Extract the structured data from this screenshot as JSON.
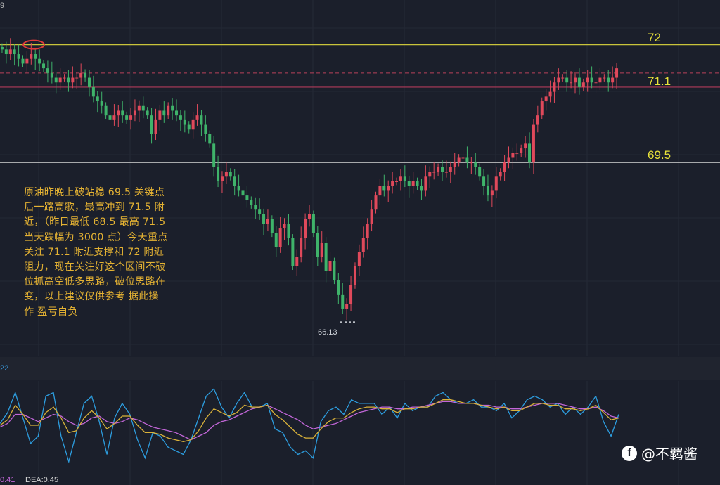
{
  "chart_data": [
    {
      "type": "candlestick",
      "ylim": [
        65.4,
        72.8
      ],
      "levels": [
        {
          "label": "72",
          "value": 72.0,
          "color": "#c9c33b"
        },
        {
          "label": "71.1",
          "value": 71.1,
          "color": "#b03a5a"
        },
        {
          "label": "69.5",
          "value": 69.5,
          "color": "#d8d8d8"
        }
      ],
      "current_price_line": 71.4,
      "low_marker": {
        "label": "66.13",
        "value": 66.13
      },
      "annotation": "原油昨晚上破站稳 69.5 关键点后一路高歌，最高冲到 71.5 附近，（昨日最低 68.5 最高 71.5 当天跌幅为 3000 点）今天重点关注 71.1 附近支撑和 72 附近阻力，现在关注好这个区间不破位抓高空低多思路，破位思路在变，以上建议仅供参考 据此操作 盈亏自负",
      "closes": [
        71.9,
        71.8,
        71.9,
        71.8,
        71.7,
        71.6,
        71.7,
        71.8,
        71.7,
        71.6,
        71.5,
        71.4,
        71.3,
        71.2,
        71.3,
        71.3,
        71.2,
        71.3,
        71.3,
        71.4,
        71.3,
        71.1,
        70.9,
        70.8,
        70.7,
        70.5,
        70.4,
        70.5,
        70.6,
        70.5,
        70.4,
        70.5,
        70.6,
        70.7,
        70.6,
        70.5,
        70.1,
        70.4,
        70.6,
        70.5,
        70.7,
        70.6,
        70.5,
        70.4,
        70.3,
        70.2,
        70.4,
        70.5,
        70.3,
        70.1,
        69.9,
        69.4,
        69.1,
        69.2,
        69.3,
        69.2,
        69.0,
        68.9,
        68.8,
        68.7,
        68.6,
        68.5,
        68.4,
        68.2,
        68.3,
        68.0,
        67.7,
        68.1,
        68.2,
        67.9,
        67.3,
        67.5,
        67.9,
        68.3,
        68.4,
        68.0,
        67.5,
        67.8,
        67.2,
        67.4,
        67.0,
        66.7,
        66.4,
        66.5,
        66.9,
        67.3,
        67.6,
        67.9,
        68.2,
        68.5,
        68.8,
        69.0,
        68.9,
        69.0,
        69.1,
        69.1,
        69.2,
        69.1,
        69.0,
        69.1,
        69.0,
        68.9,
        69.2,
        69.3,
        69.3,
        69.4,
        69.3,
        69.3,
        69.4,
        69.5,
        69.6,
        69.6,
        69.5,
        69.5,
        69.4,
        69.2,
        69.0,
        68.8,
        68.9,
        69.2,
        69.3,
        69.5,
        69.6,
        69.7,
        69.7,
        69.8,
        69.9,
        69.5,
        70.3,
        70.5,
        70.8,
        70.9,
        71.0,
        71.2,
        71.3,
        71.3,
        71.2,
        71.2,
        71.3,
        71.1,
        71.2,
        71.3,
        71.2,
        71.2,
        71.3,
        71.3,
        71.2,
        71.3,
        71.5
      ]
    },
    {
      "type": "line",
      "series": [
        {
          "name": "DIF",
          "color": "#2d9ee0",
          "values": [
            0.05,
            0.35,
            0.9,
            0.2,
            -0.5,
            -0.3,
            0.8,
            0.9,
            -0.3,
            -1.0,
            -0.2,
            0.6,
            0.8,
            0.1,
            -0.8,
            0.2,
            0.6,
            0.3,
            -0.4,
            -0.9,
            -0.2,
            -0.3,
            -0.6,
            -0.7,
            -0.8,
            -0.4,
            0.2,
            0.8,
            1.0,
            0.5,
            0.2,
            0.6,
            0.9,
            0.5,
            0.5,
            0.6,
            -0.1,
            -0.2,
            -0.6,
            -0.8,
            -0.7,
            -0.9,
            0.1,
            0.4,
            0.5,
            0.3,
            0.7,
            0.6,
            0.6,
            0.6,
            0.3,
            0.5,
            0.2,
            0.6,
            0.4,
            0.5,
            0.5,
            0.8,
            0.9,
            0.7,
            0.6,
            0.6,
            0.7,
            0.5,
            0.5,
            0.4,
            0.6,
            0.2,
            0.4,
            0.7,
            0.8,
            0.7,
            0.5,
            0.6,
            0.3,
            0.5,
            0.3,
            0.5,
            0.8,
            0.1,
            -0.3,
            0.3
          ]
        },
        {
          "name": "DEA",
          "color": "#c266d8",
          "values": [
            -0.05,
            0.05,
            0.3,
            0.3,
            0.2,
            0.1,
            0.2,
            0.3,
            0.25,
            0.1,
            0.0,
            0.05,
            0.2,
            0.25,
            0.1,
            0.05,
            0.1,
            0.2,
            0.15,
            0.05,
            -0.05,
            -0.1,
            -0.15,
            -0.2,
            -0.3,
            -0.4,
            -0.3,
            -0.2,
            0.0,
            0.1,
            0.15,
            0.25,
            0.35,
            0.45,
            0.5,
            0.55,
            0.45,
            0.35,
            0.25,
            0.15,
            0.0,
            -0.1,
            -0.05,
            0.0,
            0.05,
            0.15,
            0.25,
            0.35,
            0.4,
            0.45,
            0.5,
            0.5,
            0.45,
            0.45,
            0.5,
            0.5,
            0.55,
            0.6,
            0.65,
            0.65,
            0.6,
            0.6,
            0.6,
            0.55,
            0.55,
            0.5,
            0.5,
            0.45,
            0.45,
            0.5,
            0.55,
            0.6,
            0.6,
            0.6,
            0.55,
            0.5,
            0.45,
            0.45,
            0.5,
            0.4,
            0.25,
            0.2
          ]
        },
        {
          "name": "MACD",
          "color": "#d9b23a",
          "values": [
            0.0,
            0.15,
            0.55,
            0.3,
            0.0,
            0.0,
            0.35,
            0.5,
            0.2,
            -0.2,
            -0.15,
            0.2,
            0.4,
            0.2,
            -0.1,
            0.05,
            0.25,
            0.25,
            0.0,
            -0.2,
            -0.2,
            -0.25,
            -0.35,
            -0.4,
            -0.45,
            -0.4,
            -0.15,
            0.2,
            0.45,
            0.35,
            0.25,
            0.35,
            0.55,
            0.5,
            0.5,
            0.55,
            0.3,
            0.15,
            -0.05,
            -0.25,
            -0.35,
            -0.35,
            -0.1,
            0.1,
            0.2,
            0.2,
            0.35,
            0.45,
            0.5,
            0.5,
            0.45,
            0.45,
            0.35,
            0.45,
            0.45,
            0.5,
            0.5,
            0.6,
            0.7,
            0.7,
            0.65,
            0.6,
            0.6,
            0.55,
            0.5,
            0.45,
            0.5,
            0.4,
            0.4,
            0.5,
            0.6,
            0.6,
            0.55,
            0.55,
            0.45,
            0.45,
            0.4,
            0.45,
            0.55,
            0.35,
            0.15,
            0.2
          ]
        }
      ],
      "legend": [
        "0.41",
        "DEA:0.45"
      ]
    }
  ],
  "watermark": {
    "logo": "f",
    "text": "@不羁酱"
  },
  "top_left_tick": "9",
  "mid_indicator_label": "22"
}
